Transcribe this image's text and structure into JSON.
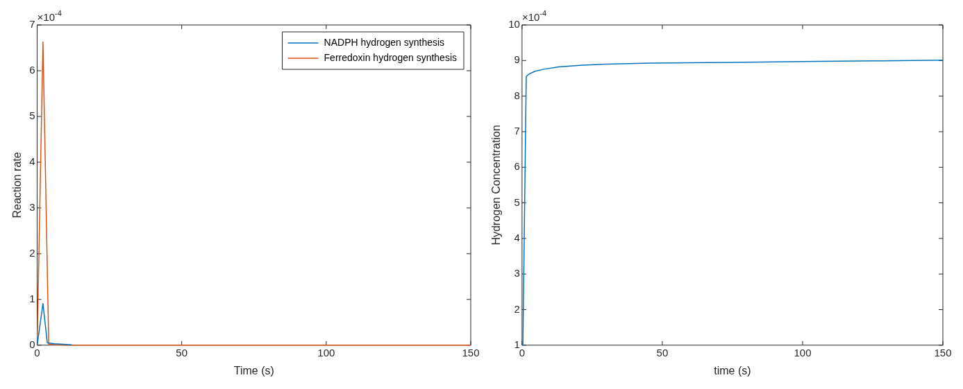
{
  "chart_data": [
    {
      "type": "line",
      "xlabel": "Time (s)",
      "ylabel": "Reaction rate",
      "annotations": [
        "×10$^{-4}$"
      ],
      "xlim": [
        0,
        150
      ],
      "xticks": [
        0,
        50,
        100,
        150
      ],
      "ylim": [
        0,
        7
      ],
      "yticks": [
        0,
        1,
        2,
        3,
        4,
        5,
        6,
        7
      ],
      "grid": false,
      "legend": "top right",
      "marker": "none",
      "line_style": "solid",
      "series": [
        {
          "name": "NADPH hydrogen synthesis",
          "color": "#0072bd",
          "x": [
            0,
            2,
            3.5,
            6,
            12
          ],
          "values": [
            0,
            0.91,
            0.05,
            0.03,
            0.01
          ]
        },
        {
          "name": "Ferredoxin hydrogen synthesis",
          "color": "#d95319",
          "x": [
            0,
            2,
            4,
            10,
            150
          ],
          "values": [
            0,
            6.63,
            0.02,
            0,
            0
          ]
        }
      ]
    },
    {
      "type": "line",
      "xlabel": "time (s)",
      "ylabel": "Hydrogen Concentration",
      "annotations": [
        "×10$^{-4}$"
      ],
      "xlim": [
        0,
        150
      ],
      "xticks": [
        0,
        50,
        100,
        150
      ],
      "ylim": [
        1,
        10
      ],
      "yticks": [
        1,
        2,
        3,
        4,
        5,
        6,
        7,
        8,
        9,
        10
      ],
      "grid": false,
      "legend": false,
      "marker": "none",
      "line_style": "solid",
      "series": [
        {
          "color": "#0072bd",
          "x": [
            0,
            0.3,
            1.5,
            2.5,
            4.6,
            8,
            13,
            21.5,
            30,
            46,
            75,
            100,
            125,
            150
          ],
          "values": [
            1,
            1,
            8.55,
            8.62,
            8.7,
            8.76,
            8.82,
            8.87,
            8.9,
            8.93,
            8.95,
            8.97,
            8.99,
            9.01
          ]
        }
      ]
    }
  ]
}
